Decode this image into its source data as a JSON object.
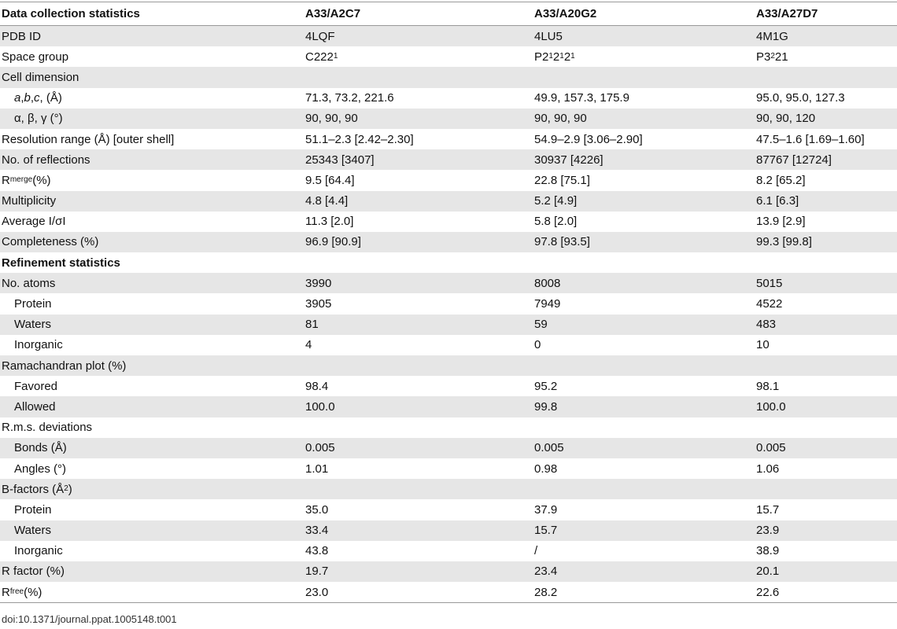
{
  "table": {
    "header": [
      "Data collection statistics",
      "A33/A2C7",
      "A33/A20G2",
      "A33/A27D7"
    ],
    "rows": [
      {
        "cells": [
          "PDB ID",
          "4LQF",
          "4LU5",
          "4M1G"
        ]
      },
      {
        "cells": [
          "Space group",
          [
            "C222",
            {
              "sub": "1"
            }
          ],
          [
            "P2",
            {
              "sub": "1"
            },
            "2",
            {
              "sub": "1"
            },
            "2",
            {
              "sub": "1"
            }
          ],
          [
            "P3",
            {
              "sub": "2"
            },
            "21"
          ]
        ]
      },
      {
        "cells": [
          "Cell dimension"
        ]
      },
      {
        "indent": true,
        "cells": [
          [
            {
              "i": "a"
            },
            ", ",
            {
              "i": "b"
            },
            ", ",
            {
              "i": "c"
            },
            ", (Å)"
          ],
          "71.3, 73.2, 221.6",
          "49.9, 157.3, 175.9",
          "95.0, 95.0, 127.3"
        ]
      },
      {
        "indent": true,
        "cells": [
          "α, β, γ (°)",
          "90, 90, 90",
          "90, 90, 90",
          "90, 90, 120"
        ]
      },
      {
        "cells": [
          "Resolution range (Å) [outer shell]",
          "51.1–2.3 [2.42–2.30]",
          "54.9–2.9 [3.06–2.90]",
          "47.5–1.6 [1.69–1.60]"
        ]
      },
      {
        "cells": [
          "No. of reflections",
          "25343 [3407]",
          "30937 [4226]",
          "87767 [12724]"
        ]
      },
      {
        "cells": [
          [
            "R",
            {
              "sub": "merge"
            },
            " (%)"
          ],
          "9.5 [64.4]",
          "22.8 [75.1]",
          "8.2 [65.2]"
        ]
      },
      {
        "cells": [
          "Multiplicity",
          "4.8 [4.4]",
          "5.2 [4.9]",
          "6.1 [6.3]"
        ]
      },
      {
        "cells": [
          "Average I/σI",
          "11.3 [2.0]",
          "5.8 [2.0]",
          "13.9 [2.9]"
        ]
      },
      {
        "cells": [
          "Completeness (%)",
          "96.9 [90.9]",
          "97.8 [93.5]",
          "99.3 [99.8]"
        ]
      },
      {
        "bold": true,
        "cells": [
          "Refinement statistics"
        ]
      },
      {
        "cells": [
          "No. atoms",
          "3990",
          "8008",
          "5015"
        ]
      },
      {
        "indent": true,
        "cells": [
          "Protein",
          "3905",
          "7949",
          "4522"
        ]
      },
      {
        "indent": true,
        "cells": [
          "Waters",
          "81",
          "59",
          "483"
        ]
      },
      {
        "indent": true,
        "cells": [
          "Inorganic",
          "4",
          "0",
          "10"
        ]
      },
      {
        "cells": [
          "Ramachandran plot (%)"
        ]
      },
      {
        "indent": true,
        "cells": [
          "Favored",
          "98.4",
          "95.2",
          "98.1"
        ]
      },
      {
        "indent": true,
        "cells": [
          "Allowed",
          "100.0",
          "99.8",
          "100.0"
        ]
      },
      {
        "cells": [
          "R.m.s. deviations"
        ]
      },
      {
        "indent": true,
        "cells": [
          "Bonds (Å)",
          "0.005",
          "0.005",
          "0.005"
        ]
      },
      {
        "indent": true,
        "cells": [
          "Angles (°)",
          "1.01",
          "0.98",
          "1.06"
        ]
      },
      {
        "cells": [
          [
            "B-factors (Å",
            {
              "sup": "2"
            },
            ")"
          ]
        ]
      },
      {
        "indent": true,
        "cells": [
          "Protein",
          "35.0",
          "37.9",
          "15.7"
        ]
      },
      {
        "indent": true,
        "cells": [
          "Waters",
          "33.4",
          "15.7",
          "23.9"
        ]
      },
      {
        "indent": true,
        "cells": [
          "Inorganic",
          "43.8",
          "/",
          "38.9"
        ]
      },
      {
        "cells": [
          "R factor (%)",
          "19.7",
          "23.4",
          "20.1"
        ]
      },
      {
        "cells": [
          [
            "R",
            {
              "sub": "free"
            },
            " (%)"
          ],
          "23.0",
          "28.2",
          "22.6"
        ]
      }
    ]
  },
  "footer": "doi:10.1371/journal.ppat.1005148.t001"
}
